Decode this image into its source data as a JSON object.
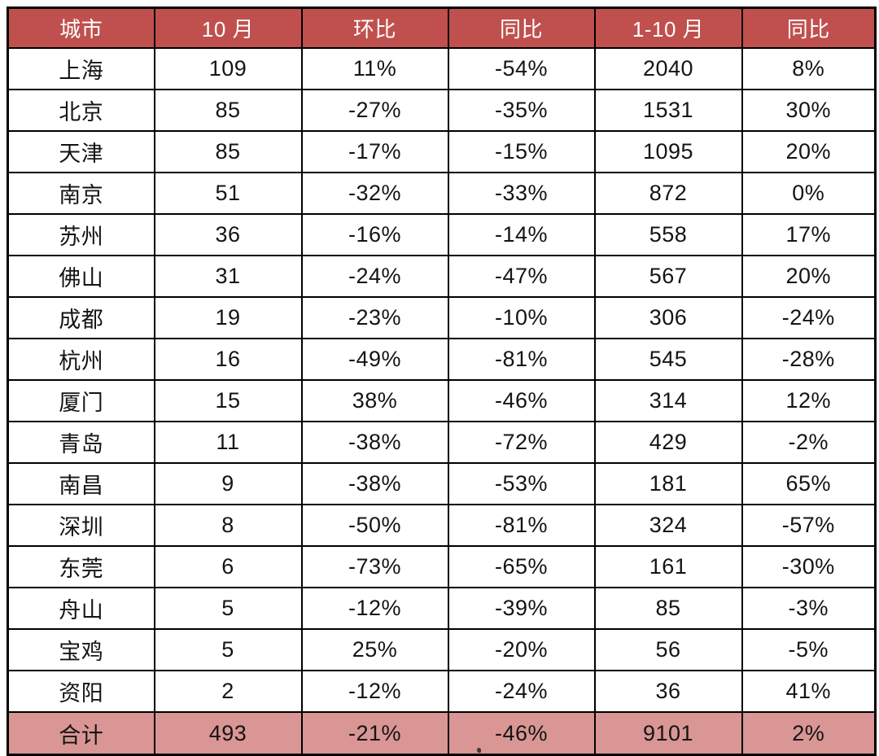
{
  "colors": {
    "header_bg": "#c0504d",
    "header_text": "#ffffff",
    "total_row_bg": "#d99694",
    "body_text": "#141414",
    "border": "#000000",
    "page_bg": "#ffffff"
  },
  "chart_data": {
    "type": "table",
    "title": "",
    "columns": [
      "城市",
      "10 月",
      "环比",
      "同比",
      "1-10 月",
      "同比"
    ],
    "rows": [
      [
        "上海",
        "109",
        "11%",
        "-54%",
        "2040",
        "8%"
      ],
      [
        "北京",
        "85",
        "-27%",
        "-35%",
        "1531",
        "30%"
      ],
      [
        "天津",
        "85",
        "-17%",
        "-15%",
        "1095",
        "20%"
      ],
      [
        "南京",
        "51",
        "-32%",
        "-33%",
        "872",
        "0%"
      ],
      [
        "苏州",
        "36",
        "-16%",
        "-14%",
        "558",
        "17%"
      ],
      [
        "佛山",
        "31",
        "-24%",
        "-47%",
        "567",
        "20%"
      ],
      [
        "成都",
        "19",
        "-23%",
        "-10%",
        "306",
        "-24%"
      ],
      [
        "杭州",
        "16",
        "-49%",
        "-81%",
        "545",
        "-28%"
      ],
      [
        "厦门",
        "15",
        "38%",
        "-46%",
        "314",
        "12%"
      ],
      [
        "青岛",
        "11",
        "-38%",
        "-72%",
        "429",
        "-2%"
      ],
      [
        "南昌",
        "9",
        "-38%",
        "-53%",
        "181",
        "65%"
      ],
      [
        "深圳",
        "8",
        "-50%",
        "-81%",
        "324",
        "-57%"
      ],
      [
        "东莞",
        "6",
        "-73%",
        "-65%",
        "161",
        "-30%"
      ],
      [
        "舟山",
        "5",
        "-12%",
        "-39%",
        "85",
        "-3%"
      ],
      [
        "宝鸡",
        "5",
        "25%",
        "-20%",
        "56",
        "-5%"
      ],
      [
        "资阳",
        "2",
        "-12%",
        "-24%",
        "36",
        "41%"
      ]
    ],
    "total_row": [
      "合计",
      "493",
      "-21%",
      "-46%",
      "9101",
      "2%"
    ]
  }
}
